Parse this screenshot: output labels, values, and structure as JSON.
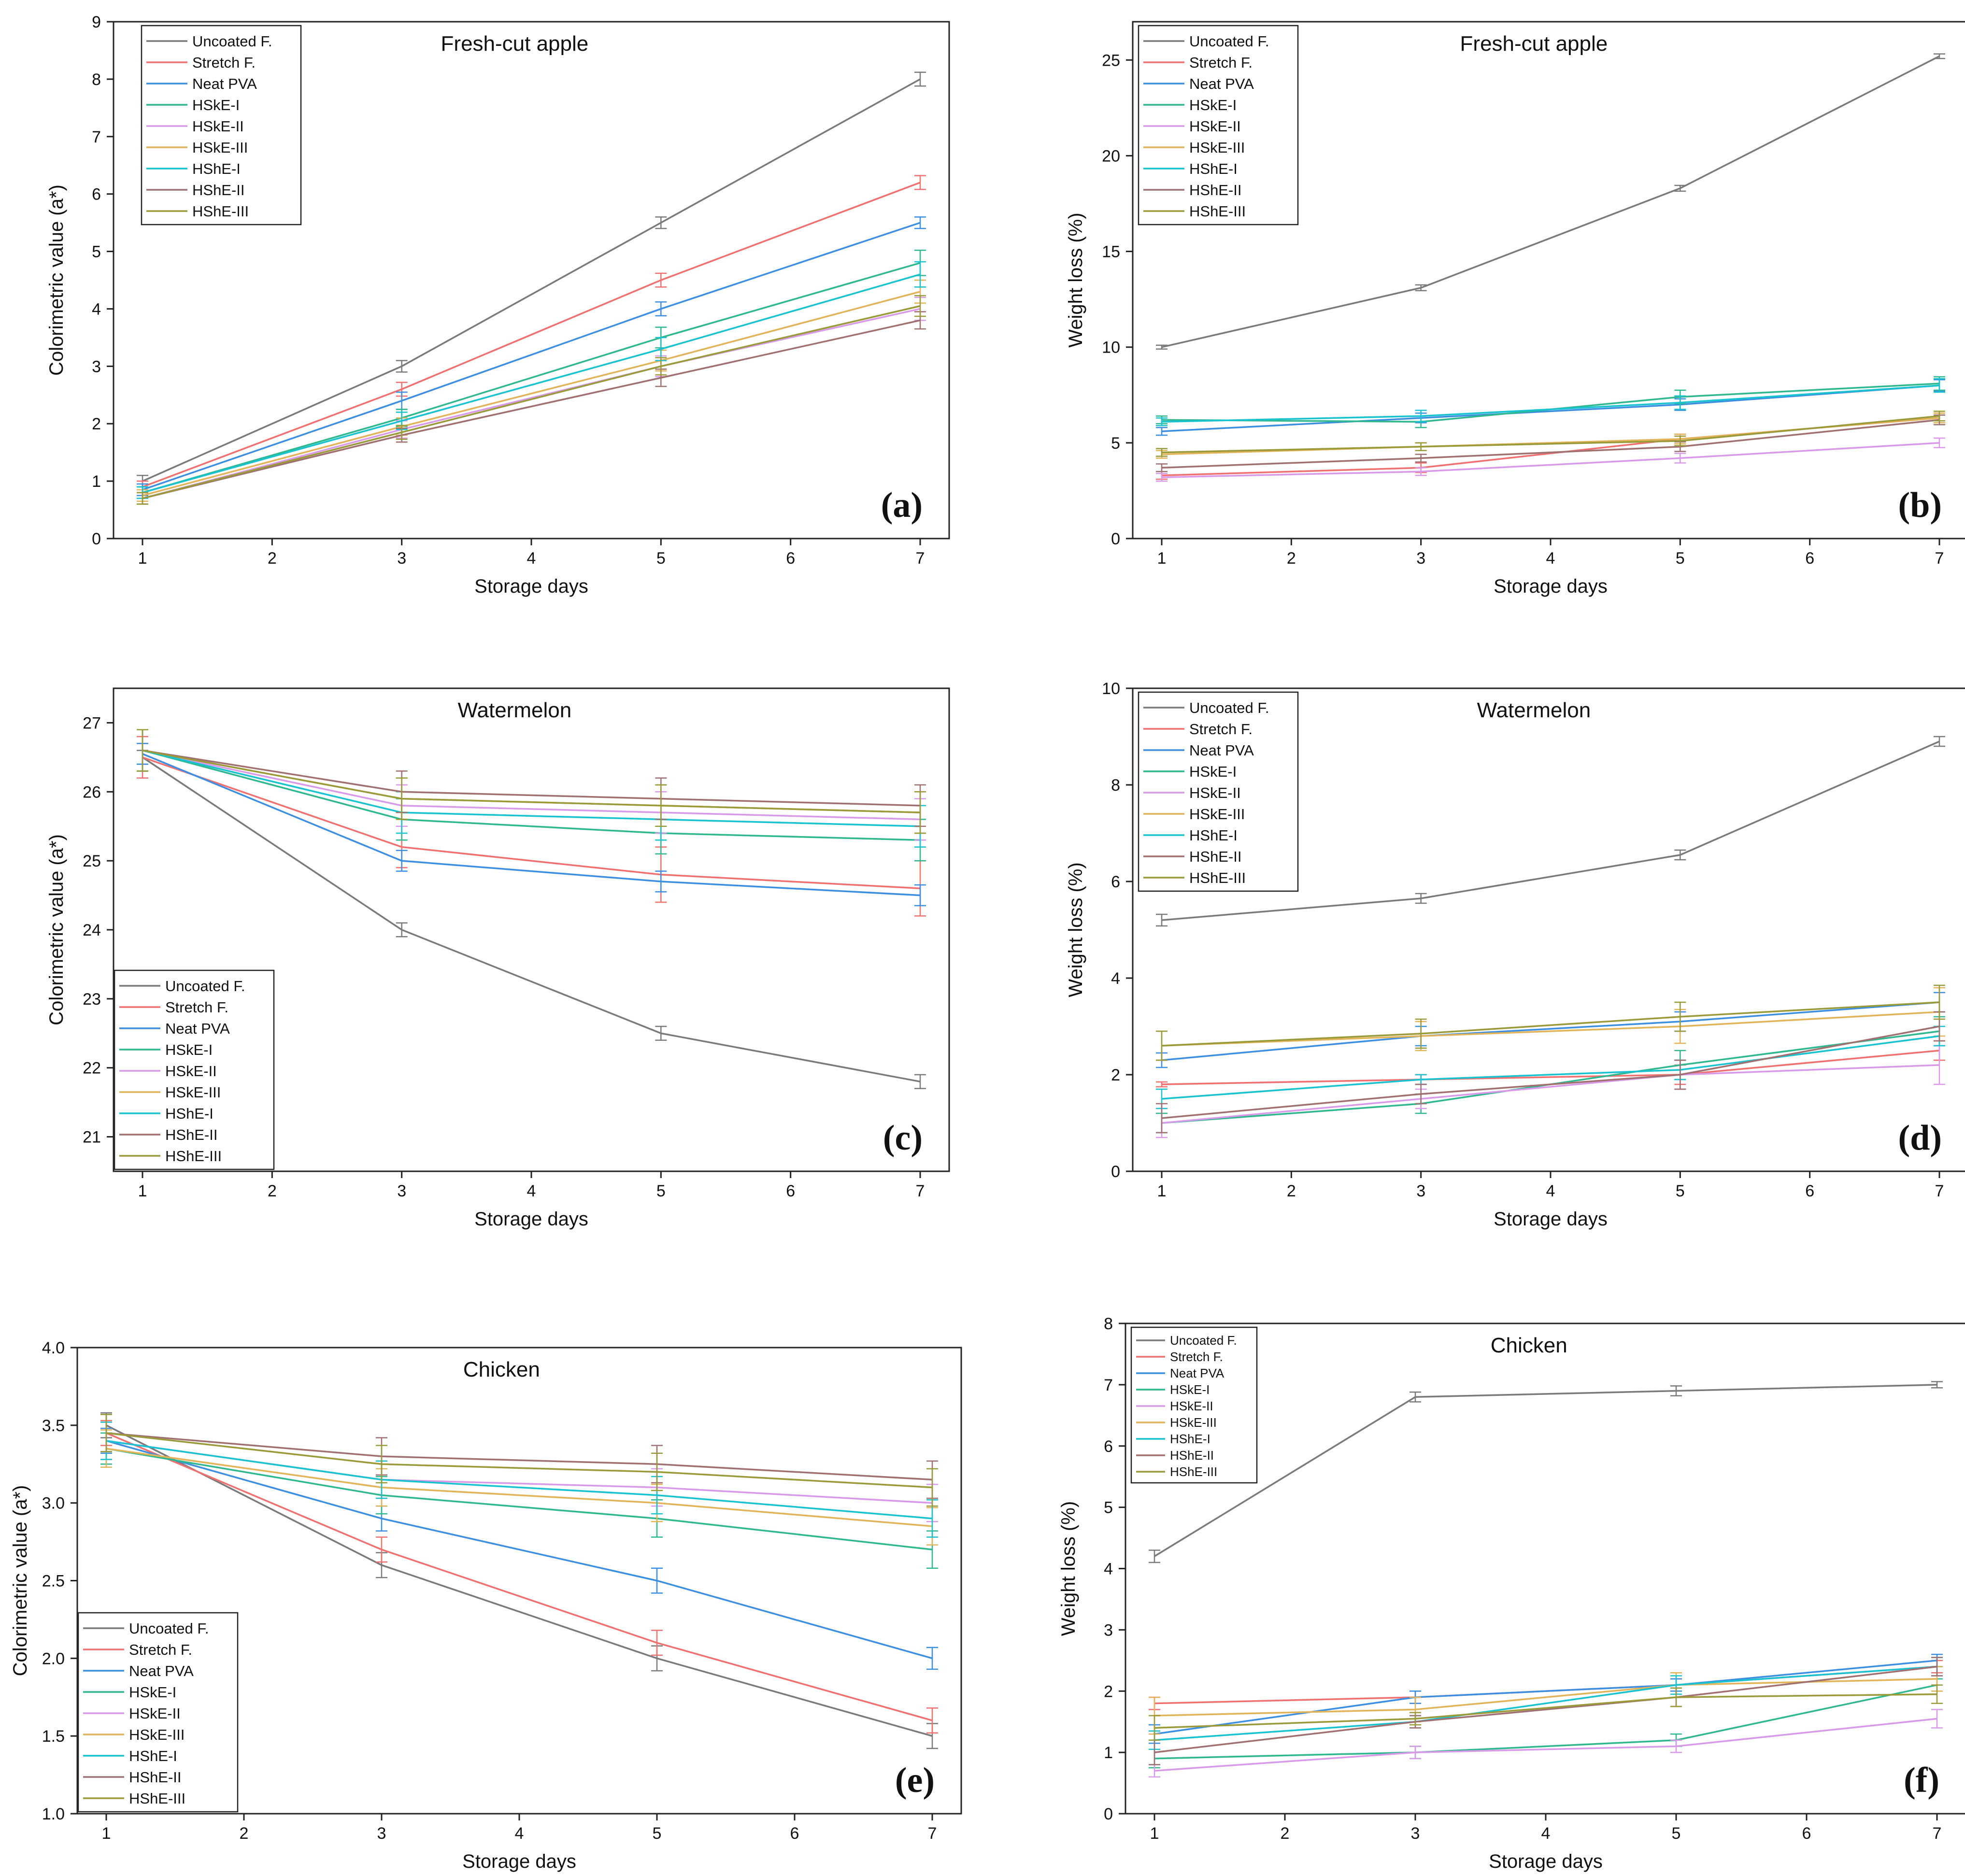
{
  "colors": {
    "Uncoated F.": "#7a7a7a",
    "Stretch F.": "#f07070",
    "Neat PVA": "#3c8fe0",
    "HSkE-I": "#2fb88f",
    "HSkE-II": "#d89ae8",
    "HSkE-III": "#e2b45a",
    "HShE-I": "#18c3cf",
    "HShE-II": "#a07070",
    "HShE-III": "#9a9a3a"
  },
  "chart_data": [
    {
      "id": "a",
      "panel_label": "(a)",
      "type": "line",
      "title": "Fresh-cut apple",
      "xlabel": "Storage days",
      "ylabel": "Colorimetric value (a*)",
      "xlim": [
        1,
        7
      ],
      "ylim": [
        0,
        9
      ],
      "xticks": [
        "1",
        "2",
        "3",
        "4",
        "5",
        "6",
        "7"
      ],
      "yticks": [
        "0",
        "1",
        "2",
        "3",
        "4",
        "5",
        "6",
        "7",
        "8",
        "9"
      ],
      "legend_position": "top-left",
      "x": [
        1,
        3,
        5,
        7
      ],
      "series": [
        {
          "name": "Uncoated F.",
          "values": [
            1.0,
            3.0,
            5.5,
            8.0
          ],
          "err": [
            0.1,
            0.1,
            0.1,
            0.12
          ]
        },
        {
          "name": "Stretch F.",
          "values": [
            0.9,
            2.6,
            4.5,
            6.2
          ],
          "err": [
            0.1,
            0.12,
            0.12,
            0.12
          ]
        },
        {
          "name": "Neat PVA",
          "values": [
            0.85,
            2.4,
            4.0,
            5.5
          ],
          "err": [
            0.1,
            0.15,
            0.12,
            0.1
          ]
        },
        {
          "name": "HSkE-I",
          "values": [
            0.8,
            2.1,
            3.5,
            4.8
          ],
          "err": [
            0.1,
            0.15,
            0.18,
            0.22
          ]
        },
        {
          "name": "HSkE-II",
          "values": [
            0.7,
            1.9,
            3.0,
            4.0
          ],
          "err": [
            0.1,
            0.15,
            0.18,
            0.2
          ]
        },
        {
          "name": "HSkE-III",
          "values": [
            0.75,
            1.95,
            3.1,
            4.3
          ],
          "err": [
            0.1,
            0.15,
            0.18,
            0.2
          ]
        },
        {
          "name": "HShE-I",
          "values": [
            0.8,
            2.05,
            3.3,
            4.6
          ],
          "err": [
            0.1,
            0.15,
            0.2,
            0.22
          ]
        },
        {
          "name": "HShE-II",
          "values": [
            0.7,
            1.8,
            2.8,
            3.8
          ],
          "err": [
            0.1,
            0.12,
            0.15,
            0.15
          ]
        },
        {
          "name": "HShE-III",
          "values": [
            0.7,
            1.85,
            3.0,
            4.05
          ],
          "err": [
            0.1,
            0.12,
            0.15,
            0.18
          ]
        }
      ]
    },
    {
      "id": "b",
      "panel_label": "(b)",
      "type": "line",
      "title": "Fresh-cut apple",
      "xlabel": "Storage days",
      "ylabel": "Weight loss (%)",
      "xlim": [
        1,
        7
      ],
      "ylim": [
        0,
        27
      ],
      "xticks": [
        "1",
        "2",
        "3",
        "4",
        "5",
        "6",
        "7"
      ],
      "yticks": [
        "0",
        "5",
        "10",
        "15",
        "20",
        "25"
      ],
      "legend_position": "top-left",
      "x": [
        1,
        3,
        5,
        7
      ],
      "series": [
        {
          "name": "Uncoated F.",
          "values": [
            10.0,
            13.1,
            18.3,
            25.2
          ],
          "err": [
            0.1,
            0.15,
            0.15,
            0.12
          ]
        },
        {
          "name": "Stretch F.",
          "values": [
            3.3,
            3.7,
            5.2,
            6.3
          ],
          "err": [
            0.2,
            0.25,
            0.25,
            0.25
          ]
        },
        {
          "name": "Neat PVA",
          "values": [
            5.6,
            6.3,
            7.0,
            8.0
          ],
          "err": [
            0.2,
            0.25,
            0.3,
            0.3
          ]
        },
        {
          "name": "HSkE-I",
          "values": [
            6.2,
            6.1,
            7.4,
            8.1
          ],
          "err": [
            0.2,
            0.3,
            0.35,
            0.35
          ]
        },
        {
          "name": "HSkE-II",
          "values": [
            3.2,
            3.5,
            4.2,
            5.0
          ],
          "err": [
            0.2,
            0.2,
            0.25,
            0.25
          ]
        },
        {
          "name": "HSkE-III",
          "values": [
            4.4,
            4.8,
            5.2,
            6.3
          ],
          "err": [
            0.2,
            0.2,
            0.25,
            0.25
          ]
        },
        {
          "name": "HShE-I",
          "values": [
            6.1,
            6.4,
            7.1,
            8.0
          ],
          "err": [
            0.2,
            0.3,
            0.35,
            0.35
          ]
        },
        {
          "name": "HShE-II",
          "values": [
            3.7,
            4.2,
            4.8,
            6.2
          ],
          "err": [
            0.2,
            0.2,
            0.25,
            0.25
          ]
        },
        {
          "name": "HShE-III",
          "values": [
            4.5,
            4.8,
            5.1,
            6.4
          ],
          "err": [
            0.2,
            0.2,
            0.25,
            0.25
          ]
        }
      ]
    },
    {
      "id": "c",
      "panel_label": "(c)",
      "type": "line",
      "title": "Watermelon",
      "xlabel": "Storage days",
      "ylabel": "Colorimetric value (a*)",
      "xlim": [
        1,
        7
      ],
      "ylim": [
        20.5,
        27.5
      ],
      "xticks": [
        "1",
        "2",
        "3",
        "4",
        "5",
        "6",
        "7"
      ],
      "yticks": [
        "21",
        "22",
        "23",
        "24",
        "25",
        "26",
        "27"
      ],
      "legend_position": "bottom-left",
      "x": [
        1,
        3,
        5,
        7
      ],
      "series": [
        {
          "name": "Uncoated F.",
          "values": [
            26.5,
            24.0,
            22.5,
            21.8
          ],
          "err": [
            0.1,
            0.1,
            0.1,
            0.1
          ]
        },
        {
          "name": "Stretch F.",
          "values": [
            26.5,
            25.2,
            24.8,
            24.6
          ],
          "err": [
            0.3,
            0.3,
            0.4,
            0.4
          ]
        },
        {
          "name": "Neat PVA",
          "values": [
            26.55,
            25.0,
            24.7,
            24.5
          ],
          "err": [
            0.15,
            0.15,
            0.15,
            0.15
          ]
        },
        {
          "name": "HSkE-I",
          "values": [
            26.6,
            25.6,
            25.4,
            25.3
          ],
          "err": [
            0.3,
            0.3,
            0.3,
            0.3
          ]
        },
        {
          "name": "HSkE-II",
          "values": [
            26.6,
            25.8,
            25.7,
            25.6
          ],
          "err": [
            0.3,
            0.3,
            0.3,
            0.3
          ]
        },
        {
          "name": "HSkE-III",
          "values": [
            26.6,
            25.9,
            25.8,
            25.7
          ],
          "err": [
            0.3,
            0.3,
            0.3,
            0.3
          ]
        },
        {
          "name": "HShE-I",
          "values": [
            26.6,
            25.7,
            25.6,
            25.5
          ],
          "err": [
            0.3,
            0.3,
            0.3,
            0.3
          ]
        },
        {
          "name": "HShE-II",
          "values": [
            26.6,
            26.0,
            25.9,
            25.8
          ],
          "err": [
            0.3,
            0.3,
            0.3,
            0.3
          ]
        },
        {
          "name": "HShE-III",
          "values": [
            26.6,
            25.9,
            25.8,
            25.7
          ],
          "err": [
            0.3,
            0.3,
            0.3,
            0.3
          ]
        }
      ]
    },
    {
      "id": "d",
      "panel_label": "(d)",
      "type": "line",
      "title": "Watermelon",
      "xlabel": "Storage days",
      "ylabel": "Weight loss (%)",
      "xlim": [
        1,
        7
      ],
      "ylim": [
        0,
        10
      ],
      "xticks": [
        "1",
        "2",
        "3",
        "4",
        "5",
        "6",
        "7"
      ],
      "yticks": [
        "0",
        "2",
        "4",
        "6",
        "8",
        "10"
      ],
      "legend_position": "top-left",
      "x": [
        1,
        3,
        5,
        7
      ],
      "series": [
        {
          "name": "Uncoated F.",
          "values": [
            5.2,
            5.65,
            6.55,
            8.9
          ],
          "err": [
            0.12,
            0.1,
            0.1,
            0.1
          ]
        },
        {
          "name": "Stretch F.",
          "values": [
            1.8,
            1.9,
            2.0,
            2.5
          ],
          "err": [
            0.05,
            0.1,
            0.2,
            0.2
          ]
        },
        {
          "name": "Neat PVA",
          "values": [
            2.3,
            2.8,
            3.1,
            3.5
          ],
          "err": [
            0.15,
            0.2,
            0.2,
            0.2
          ]
        },
        {
          "name": "HSkE-I",
          "values": [
            1.0,
            1.4,
            2.2,
            2.9
          ],
          "err": [
            0.2,
            0.2,
            0.3,
            0.3
          ]
        },
        {
          "name": "HSkE-II",
          "values": [
            1.0,
            1.5,
            2.0,
            2.2
          ],
          "err": [
            0.3,
            0.2,
            0.3,
            0.4
          ]
        },
        {
          "name": "HSkE-III",
          "values": [
            2.6,
            2.8,
            3.0,
            3.3
          ],
          "err": [
            0.3,
            0.3,
            0.35,
            0.5
          ]
        },
        {
          "name": "HShE-I",
          "values": [
            1.5,
            1.9,
            2.1,
            2.8
          ],
          "err": [
            0.2,
            0.1,
            0.2,
            0.2
          ]
        },
        {
          "name": "HShE-II",
          "values": [
            1.1,
            1.6,
            2.0,
            3.0
          ],
          "err": [
            0.3,
            0.2,
            0.3,
            0.3
          ]
        },
        {
          "name": "HShE-III",
          "values": [
            2.6,
            2.85,
            3.2,
            3.5
          ],
          "err": [
            0.3,
            0.3,
            0.3,
            0.35
          ]
        }
      ]
    },
    {
      "id": "e",
      "panel_label": "(e)",
      "type": "line",
      "title": "Chicken",
      "xlabel": "Storage days",
      "ylabel": "Colorimetric value (a*)",
      "xlim": [
        1,
        7
      ],
      "ylim": [
        1.0,
        4.0
      ],
      "xticks": [
        "1",
        "2",
        "3",
        "4",
        "5",
        "6",
        "7"
      ],
      "yticks": [
        "1.0",
        "1.5",
        "2.0",
        "2.5",
        "3.0",
        "3.5",
        "4.0"
      ],
      "legend_position": "bottom-left",
      "x": [
        1,
        3,
        5,
        7
      ],
      "series": [
        {
          "name": "Uncoated F.",
          "values": [
            3.5,
            2.6,
            2.0,
            1.5
          ],
          "err": [
            0.08,
            0.08,
            0.08,
            0.08
          ]
        },
        {
          "name": "Stretch F.",
          "values": [
            3.45,
            2.7,
            2.1,
            1.6
          ],
          "err": [
            0.08,
            0.08,
            0.08,
            0.08
          ]
        },
        {
          "name": "Neat PVA",
          "values": [
            3.4,
            2.9,
            2.5,
            2.0
          ],
          "err": [
            0.08,
            0.08,
            0.08,
            0.07
          ]
        },
        {
          "name": "HSkE-I",
          "values": [
            3.35,
            3.05,
            2.9,
            2.7
          ],
          "err": [
            0.1,
            0.12,
            0.12,
            0.12
          ]
        },
        {
          "name": "HSkE-II",
          "values": [
            3.4,
            3.15,
            3.1,
            3.0
          ],
          "err": [
            0.12,
            0.12,
            0.12,
            0.12
          ]
        },
        {
          "name": "HSkE-III",
          "values": [
            3.35,
            3.1,
            3.0,
            2.85
          ],
          "err": [
            0.12,
            0.12,
            0.12,
            0.12
          ]
        },
        {
          "name": "HShE-I",
          "values": [
            3.4,
            3.15,
            3.05,
            2.9
          ],
          "err": [
            0.12,
            0.12,
            0.12,
            0.12
          ]
        },
        {
          "name": "HShE-II",
          "values": [
            3.45,
            3.3,
            3.25,
            3.15
          ],
          "err": [
            0.12,
            0.12,
            0.12,
            0.12
          ]
        },
        {
          "name": "HShE-III",
          "values": [
            3.45,
            3.25,
            3.2,
            3.1
          ],
          "err": [
            0.12,
            0.12,
            0.12,
            0.12
          ]
        }
      ]
    },
    {
      "id": "f",
      "panel_label": "(f)",
      "type": "line",
      "title": "Chicken",
      "xlabel": "Storage days",
      "ylabel": "Weight loss (%)",
      "xlim": [
        1,
        7
      ],
      "ylim": [
        0,
        8
      ],
      "xticks": [
        "1",
        "2",
        "3",
        "4",
        "5",
        "6",
        "7"
      ],
      "yticks": [
        "0",
        "1",
        "2",
        "3",
        "4",
        "5",
        "6",
        "7",
        "8"
      ],
      "legend_position": "top-left",
      "small_legend": true,
      "x": [
        1,
        3,
        5,
        7
      ],
      "series": [
        {
          "name": "Uncoated F.",
          "values": [
            4.2,
            6.8,
            6.9,
            7.0
          ],
          "err": [
            0.1,
            0.08,
            0.08,
            0.05
          ]
        },
        {
          "name": "Stretch F.",
          "values": [
            1.8,
            1.9,
            2.1,
            2.4
          ],
          "err": [
            0.1,
            0.1,
            0.1,
            0.1
          ]
        },
        {
          "name": "Neat PVA",
          "values": [
            1.3,
            1.9,
            2.1,
            2.5
          ],
          "err": [
            0.15,
            0.1,
            0.1,
            0.1
          ]
        },
        {
          "name": "HSkE-I",
          "values": [
            0.9,
            1.0,
            1.2,
            2.1
          ],
          "err": [
            0.15,
            0.1,
            0.1,
            0.1
          ]
        },
        {
          "name": "HSkE-II",
          "values": [
            0.7,
            1.0,
            1.1,
            1.55
          ],
          "err": [
            0.1,
            0.1,
            0.1,
            0.15
          ]
        },
        {
          "name": "HSkE-III",
          "values": [
            1.6,
            1.7,
            2.1,
            2.2
          ],
          "err": [
            0.3,
            0.2,
            0.2,
            0.2
          ]
        },
        {
          "name": "HShE-I",
          "values": [
            1.2,
            1.5,
            2.1,
            2.4
          ],
          "err": [
            0.15,
            0.1,
            0.15,
            0.15
          ]
        },
        {
          "name": "HShE-II",
          "values": [
            1.0,
            1.5,
            1.9,
            2.4
          ],
          "err": [
            0.2,
            0.1,
            0.15,
            0.15
          ]
        },
        {
          "name": "HShE-III",
          "values": [
            1.4,
            1.55,
            1.9,
            1.95
          ],
          "err": [
            0.2,
            0.1,
            0.15,
            0.15
          ]
        }
      ]
    }
  ]
}
